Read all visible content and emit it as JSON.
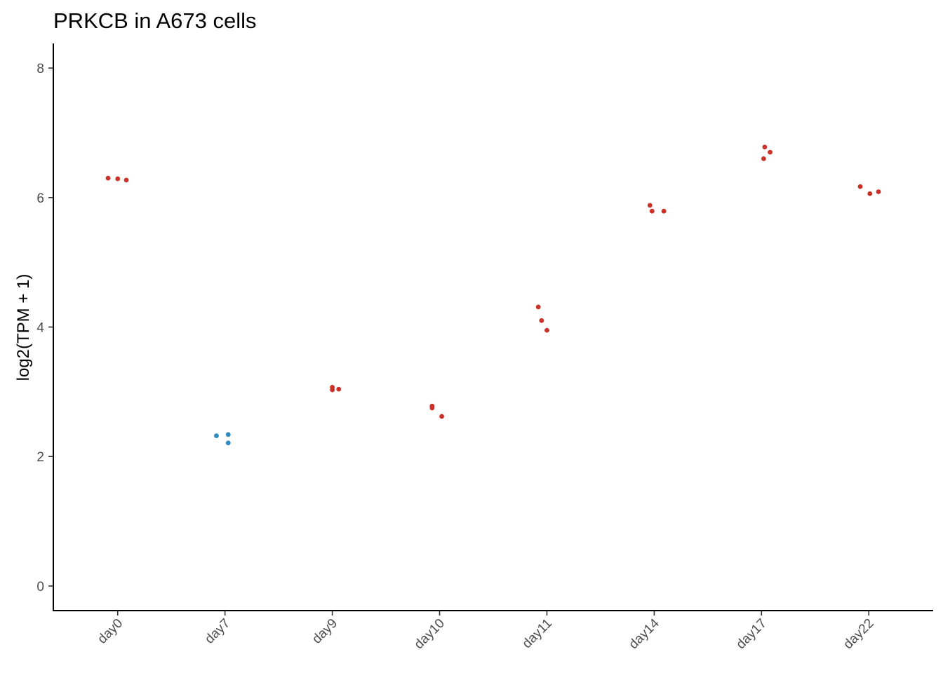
{
  "chart_data": {
    "type": "scatter",
    "title": "PRKCB in A673 cells",
    "xlabel": "",
    "ylabel": "log2(TPM + 1)",
    "ylim": [
      -0.38,
      8.38
    ],
    "y_ticks": [
      0,
      2,
      4,
      6,
      8
    ],
    "x_tick_rotation": "45deg",
    "grid": false,
    "legend": "none",
    "categories": [
      "day0",
      "day7",
      "day9",
      "day10",
      "day11",
      "day14",
      "day17",
      "day22"
    ],
    "colors": {
      "high": "#cb3127",
      "low": "#2e8cbf"
    },
    "points": [
      {
        "category": "day0",
        "jitter": -0.09,
        "y": 6.3,
        "color": "high"
      },
      {
        "category": "day0",
        "jitter": 0.0,
        "y": 6.29,
        "color": "high"
      },
      {
        "category": "day0",
        "jitter": 0.08,
        "y": 6.27,
        "color": "high"
      },
      {
        "category": "day7",
        "jitter": -0.08,
        "y": 2.32,
        "color": "low"
      },
      {
        "category": "day7",
        "jitter": 0.03,
        "y": 2.34,
        "color": "low"
      },
      {
        "category": "day7",
        "jitter": 0.03,
        "y": 2.21,
        "color": "low"
      },
      {
        "category": "day9",
        "jitter": 0.0,
        "y": 3.07,
        "color": "high"
      },
      {
        "category": "day9",
        "jitter": 0.0,
        "y": 3.03,
        "color": "high"
      },
      {
        "category": "day9",
        "jitter": 0.06,
        "y": 3.04,
        "color": "high"
      },
      {
        "category": "day10",
        "jitter": -0.07,
        "y": 2.78,
        "color": "high"
      },
      {
        "category": "day10",
        "jitter": -0.07,
        "y": 2.75,
        "color": "high"
      },
      {
        "category": "day10",
        "jitter": 0.02,
        "y": 2.62,
        "color": "high"
      },
      {
        "category": "day11",
        "jitter": -0.08,
        "y": 4.31,
        "color": "high"
      },
      {
        "category": "day11",
        "jitter": -0.05,
        "y": 4.1,
        "color": "high"
      },
      {
        "category": "day11",
        "jitter": 0.0,
        "y": 3.95,
        "color": "high"
      },
      {
        "category": "day14",
        "jitter": -0.04,
        "y": 5.88,
        "color": "high"
      },
      {
        "category": "day14",
        "jitter": -0.02,
        "y": 5.79,
        "color": "high"
      },
      {
        "category": "day14",
        "jitter": 0.09,
        "y": 5.79,
        "color": "high"
      },
      {
        "category": "day17",
        "jitter": 0.03,
        "y": 6.78,
        "color": "high"
      },
      {
        "category": "day17",
        "jitter": 0.08,
        "y": 6.7,
        "color": "high"
      },
      {
        "category": "day17",
        "jitter": 0.02,
        "y": 6.6,
        "color": "high"
      },
      {
        "category": "day22",
        "jitter": -0.08,
        "y": 6.17,
        "color": "high"
      },
      {
        "category": "day22",
        "jitter": 0.01,
        "y": 6.06,
        "color": "high"
      },
      {
        "category": "day22",
        "jitter": 0.09,
        "y": 6.09,
        "color": "high"
      }
    ]
  }
}
